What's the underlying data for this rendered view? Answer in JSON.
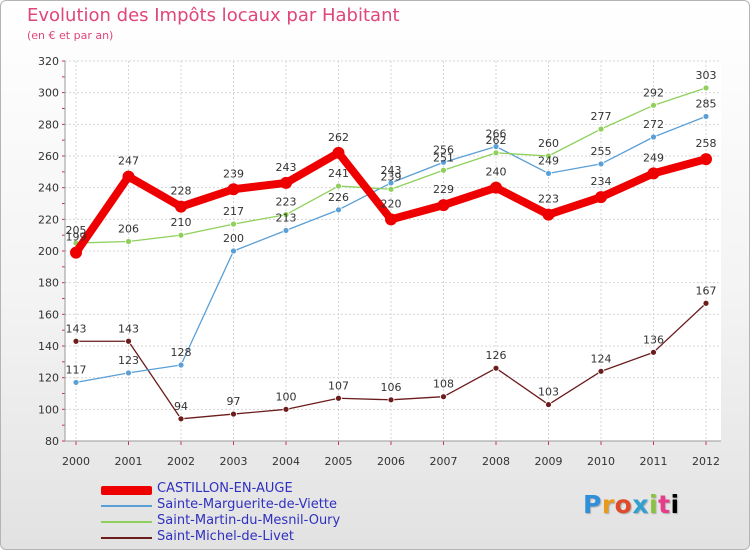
{
  "chart_data": {
    "type": "line",
    "title": "Evolution des Impôts locaux par Habitant",
    "subtitle": "(en € et par an)",
    "xlabel": "",
    "ylabel": "",
    "x": [
      "2000",
      "2001",
      "2002",
      "2003",
      "2004",
      "2005",
      "2006",
      "2007",
      "2008",
      "2009",
      "2010",
      "2011",
      "2012"
    ],
    "ylim": [
      80,
      320
    ],
    "yticks": [
      80,
      100,
      120,
      140,
      160,
      180,
      200,
      220,
      240,
      260,
      280,
      300,
      320
    ],
    "grid": true,
    "legend_position": "bottom-left",
    "series": [
      {
        "name": "CASTILLON-EN-AUGE",
        "color": "#ee0000",
        "values": [
          199,
          247,
          228,
          239,
          243,
          262,
          220,
          229,
          240,
          223,
          234,
          249,
          258
        ]
      },
      {
        "name": "Sainte-Marguerite-de-Viette",
        "color": "#5a9fd6",
        "values": [
          117,
          123,
          128,
          200,
          213,
          226,
          243,
          256,
          266,
          249,
          255,
          272,
          285
        ]
      },
      {
        "name": "Saint-Martin-du-Mesnil-Oury",
        "color": "#8ed05a",
        "values": [
          205,
          206,
          210,
          217,
          223,
          241,
          239,
          251,
          262,
          260,
          277,
          292,
          303
        ]
      },
      {
        "name": "Saint-Michel-de-Livet",
        "color": "#6b1c1c",
        "values": [
          143,
          143,
          94,
          97,
          100,
          107,
          106,
          108,
          126,
          103,
          124,
          136,
          167
        ]
      }
    ]
  },
  "logo": {
    "letters": [
      "P",
      "r",
      "o",
      "x",
      "i",
      "t",
      "i"
    ]
  }
}
